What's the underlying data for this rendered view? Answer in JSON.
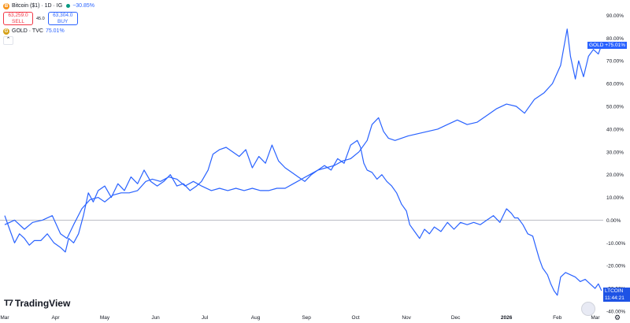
{
  "legend": {
    "btc_title": "Bitcoin ($1) · 1D · IG",
    "btc_change": "−30.85%",
    "sell_price": "63,259.0",
    "sell_label": "SELL",
    "spread": "45.0",
    "buy_price": "63,304.0",
    "buy_label": "BUY",
    "gold_title": "GOLD · TVC",
    "gold_change": "75.01%",
    "collapse_glyph": "⌃"
  },
  "badges": {
    "gold": "GOLD  +75.01%",
    "btc": "LTCOIN  −30.85%",
    "btc_time": "11:44:21"
  },
  "brand": "TradingView",
  "colors": {
    "series": "#2962ff",
    "gold_badge": "#2962ff",
    "btc_badge": "#1e53e5",
    "zero_line": "#b2b5be",
    "btc_icon": "#f7931a",
    "gold_icon": "#d4a017"
  },
  "chart_data": {
    "type": "line",
    "y_unit": "%",
    "ylim": [
      -40,
      95
    ],
    "y_ticks": [
      "90.00%",
      "80.00%",
      "70.00%",
      "60.00%",
      "50.00%",
      "40.00%",
      "30.00%",
      "20.00%",
      "10.00%",
      "0.00%",
      "-10.00%",
      "-20.00%",
      "-30.00%",
      "-40.00%"
    ],
    "y_tick_values": [
      90,
      80,
      70,
      60,
      50,
      40,
      30,
      20,
      10,
      0,
      -10,
      -20,
      -30,
      -40
    ],
    "x_ticks": [
      "Mar",
      "Apr",
      "May",
      "Jun",
      "Jul",
      "Aug",
      "Sep",
      "Oct",
      "Nov",
      "Dec",
      "2026",
      "Feb",
      "Mar"
    ],
    "x_tick_days": [
      0,
      31,
      61,
      92,
      122,
      153,
      184,
      214,
      245,
      275,
      306,
      337,
      365
    ],
    "series": [
      {
        "name": "GOLD",
        "points": [
          [
            0,
            -2
          ],
          [
            6,
            0
          ],
          [
            12,
            -4
          ],
          [
            17,
            -1
          ],
          [
            23,
            0
          ],
          [
            29,
            2
          ],
          [
            34,
            -6
          ],
          [
            38,
            -8
          ],
          [
            42,
            -2
          ],
          [
            47,
            5
          ],
          [
            52,
            9
          ],
          [
            57,
            10
          ],
          [
            61,
            8
          ],
          [
            66,
            11
          ],
          [
            71,
            12
          ],
          [
            76,
            12
          ],
          [
            81,
            13
          ],
          [
            86,
            17
          ],
          [
            90,
            18
          ],
          [
            95,
            17
          ],
          [
            100,
            19
          ],
          [
            105,
            18
          ],
          [
            110,
            15
          ],
          [
            115,
            17
          ],
          [
            120,
            15
          ],
          [
            126,
            13
          ],
          [
            131,
            14
          ],
          [
            136,
            13
          ],
          [
            141,
            14
          ],
          [
            146,
            13
          ],
          [
            151,
            14
          ],
          [
            156,
            13
          ],
          [
            161,
            13
          ],
          [
            166,
            14
          ],
          [
            171,
            14
          ],
          [
            176,
            16
          ],
          [
            181,
            18
          ],
          [
            186,
            20
          ],
          [
            191,
            22
          ],
          [
            196,
            23
          ],
          [
            201,
            24
          ],
          [
            206,
            26
          ],
          [
            211,
            27
          ],
          [
            216,
            30
          ],
          [
            221,
            35
          ],
          [
            224,
            42
          ],
          [
            228,
            45
          ],
          [
            231,
            39
          ],
          [
            234,
            36
          ],
          [
            238,
            35
          ],
          [
            242,
            36
          ],
          [
            246,
            37
          ],
          [
            252,
            38
          ],
          [
            258,
            39
          ],
          [
            264,
            40
          ],
          [
            270,
            42
          ],
          [
            276,
            44
          ],
          [
            282,
            42
          ],
          [
            288,
            43
          ],
          [
            294,
            46
          ],
          [
            300,
            49
          ],
          [
            306,
            51
          ],
          [
            312,
            50
          ],
          [
            317,
            47
          ],
          [
            323,
            53
          ],
          [
            329,
            56
          ],
          [
            334,
            60
          ],
          [
            339,
            68
          ],
          [
            343,
            84
          ],
          [
            345,
            72
          ],
          [
            348,
            62
          ],
          [
            350,
            70
          ],
          [
            353,
            63
          ],
          [
            356,
            72
          ],
          [
            359,
            75
          ],
          [
            362,
            73
          ],
          [
            364,
            77
          ]
        ]
      },
      {
        "name": "Bitcoin ($1)",
        "points": [
          [
            0,
            2
          ],
          [
            3,
            -4
          ],
          [
            6,
            -10
          ],
          [
            9,
            -6
          ],
          [
            12,
            -8
          ],
          [
            15,
            -11
          ],
          [
            18,
            -9
          ],
          [
            22,
            -9
          ],
          [
            26,
            -6
          ],
          [
            30,
            -10
          ],
          [
            34,
            -12
          ],
          [
            37,
            -14
          ],
          [
            39,
            -8
          ],
          [
            42,
            -10
          ],
          [
            45,
            -6
          ],
          [
            48,
            2
          ],
          [
            51,
            12
          ],
          [
            54,
            8
          ],
          [
            57,
            13
          ],
          [
            61,
            15
          ],
          [
            65,
            10
          ],
          [
            69,
            16
          ],
          [
            73,
            13
          ],
          [
            77,
            19
          ],
          [
            81,
            16
          ],
          [
            85,
            22
          ],
          [
            89,
            17
          ],
          [
            93,
            15
          ],
          [
            97,
            17
          ],
          [
            101,
            20
          ],
          [
            105,
            15
          ],
          [
            109,
            16
          ],
          [
            113,
            13
          ],
          [
            117,
            15
          ],
          [
            120,
            17
          ],
          [
            124,
            22
          ],
          [
            127,
            29
          ],
          [
            131,
            31
          ],
          [
            135,
            32
          ],
          [
            139,
            30
          ],
          [
            143,
            28
          ],
          [
            147,
            31
          ],
          [
            151,
            23
          ],
          [
            155,
            28
          ],
          [
            159,
            25
          ],
          [
            163,
            33
          ],
          [
            167,
            26
          ],
          [
            171,
            23
          ],
          [
            175,
            21
          ],
          [
            179,
            19
          ],
          [
            183,
            17
          ],
          [
            187,
            20
          ],
          [
            191,
            22
          ],
          [
            195,
            24
          ],
          [
            199,
            22
          ],
          [
            203,
            27
          ],
          [
            207,
            25
          ],
          [
            211,
            33
          ],
          [
            215,
            35
          ],
          [
            217,
            32
          ],
          [
            219,
            25
          ],
          [
            221,
            22
          ],
          [
            224,
            21
          ],
          [
            227,
            18
          ],
          [
            230,
            20
          ],
          [
            233,
            17
          ],
          [
            236,
            15
          ],
          [
            239,
            12
          ],
          [
            242,
            7
          ],
          [
            245,
            4
          ],
          [
            247,
            -2
          ],
          [
            250,
            -5
          ],
          [
            253,
            -8
          ],
          [
            256,
            -4
          ],
          [
            259,
            -6
          ],
          [
            262,
            -3
          ],
          [
            266,
            -5
          ],
          [
            270,
            -1
          ],
          [
            274,
            -4
          ],
          [
            278,
            -1
          ],
          [
            282,
            -2
          ],
          [
            286,
            -1
          ],
          [
            290,
            -2
          ],
          [
            294,
            0
          ],
          [
            298,
            2
          ],
          [
            302,
            -1
          ],
          [
            306,
            5
          ],
          [
            309,
            3
          ],
          [
            311,
            1
          ],
          [
            313,
            1
          ],
          [
            316,
            -2
          ],
          [
            319,
            -6
          ],
          [
            322,
            -7
          ],
          [
            324,
            -12
          ],
          [
            326,
            -17
          ],
          [
            328,
            -21
          ],
          [
            331,
            -24
          ],
          [
            333,
            -28
          ],
          [
            335,
            -31
          ],
          [
            337,
            -33
          ],
          [
            339,
            -25
          ],
          [
            342,
            -23
          ],
          [
            345,
            -24
          ],
          [
            348,
            -25
          ],
          [
            351,
            -27
          ],
          [
            354,
            -26
          ],
          [
            357,
            -28
          ],
          [
            360,
            -30
          ],
          [
            362,
            -28
          ],
          [
            364,
            -31
          ]
        ]
      }
    ]
  }
}
